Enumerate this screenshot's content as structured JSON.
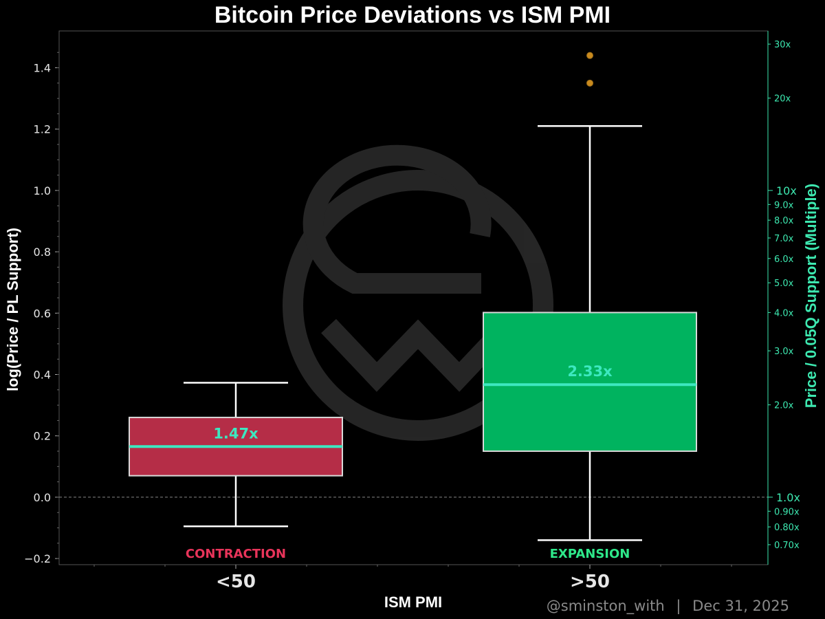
{
  "chart_data": {
    "type": "box",
    "title": "Bitcoin Price Deviations vs ISM PMI",
    "xlabel": "ISM PMI",
    "ylabel": "log(Price / PL Support)",
    "ylabel_right": "Price / 0.05Q Support (Multiple)",
    "ylim": [
      -0.22,
      1.52
    ],
    "yticks": [
      -0.2,
      0.0,
      0.2,
      0.4,
      0.6,
      0.8,
      1.0,
      1.2,
      1.4
    ],
    "ytick_labels": [
      "−0.2",
      "0.0",
      "0.2",
      "0.4",
      "0.6",
      "0.8",
      "1.0",
      "1.2",
      "1.4"
    ],
    "right_ticks": [
      {
        "label": "0.70x",
        "value": 0.7,
        "major": false
      },
      {
        "label": "0.80x",
        "value": 0.8,
        "major": false
      },
      {
        "label": "0.90x",
        "value": 0.9,
        "major": false
      },
      {
        "label": "1.0x",
        "value": 1.0,
        "major": true
      },
      {
        "label": "2.0x",
        "value": 2.0,
        "major": false
      },
      {
        "label": "3.0x",
        "value": 3.0,
        "major": false
      },
      {
        "label": "4.0x",
        "value": 4.0,
        "major": false
      },
      {
        "label": "5.0x",
        "value": 5.0,
        "major": false
      },
      {
        "label": "6.0x",
        "value": 6.0,
        "major": false
      },
      {
        "label": "7.0x",
        "value": 7.0,
        "major": false
      },
      {
        "label": "8.0x",
        "value": 8.0,
        "major": false
      },
      {
        "label": "9.0x",
        "value": 9.0,
        "major": false
      },
      {
        "label": "10x",
        "value": 10.0,
        "major": true
      },
      {
        "label": "20x",
        "value": 20.0,
        "major": false
      },
      {
        "label": "30x",
        "value": 30.0,
        "major": false
      }
    ],
    "reference_line": 0.0,
    "grid": false,
    "categories": [
      "<50",
      ">50"
    ],
    "boxes": [
      {
        "category": "<50",
        "regime": "CONTRACTION",
        "whisker_low": -0.095,
        "q1": 0.07,
        "median": 0.165,
        "q3": 0.26,
        "whisker_high": 0.373,
        "outliers": [],
        "median_label": "1.47x",
        "color": "#b52d47",
        "label_color": "#e8345a"
      },
      {
        "category": ">50",
        "regime": "EXPANSION",
        "whisker_low": -0.14,
        "q1": 0.15,
        "median": 0.367,
        "q3": 0.602,
        "whisker_high": 1.21,
        "outliers": [
          1.35,
          1.44
        ],
        "median_label": "2.33x",
        "color": "#00b35f",
        "label_color": "#2ee88a"
      }
    ]
  },
  "colors": {
    "background": "#000000",
    "median_line": "#3de8c0",
    "box_edge": "#d9d9d9",
    "whisker": "#ffffff",
    "outlier": "#c98a1e",
    "right_axis": "#3de8b0",
    "watermark": "#2a2a2a"
  },
  "footer": {
    "handle": "@sminston_with",
    "separator": "|",
    "date": "Dec 31, 2025"
  },
  "watermark": {
    "icon": "sw-logo-icon"
  }
}
